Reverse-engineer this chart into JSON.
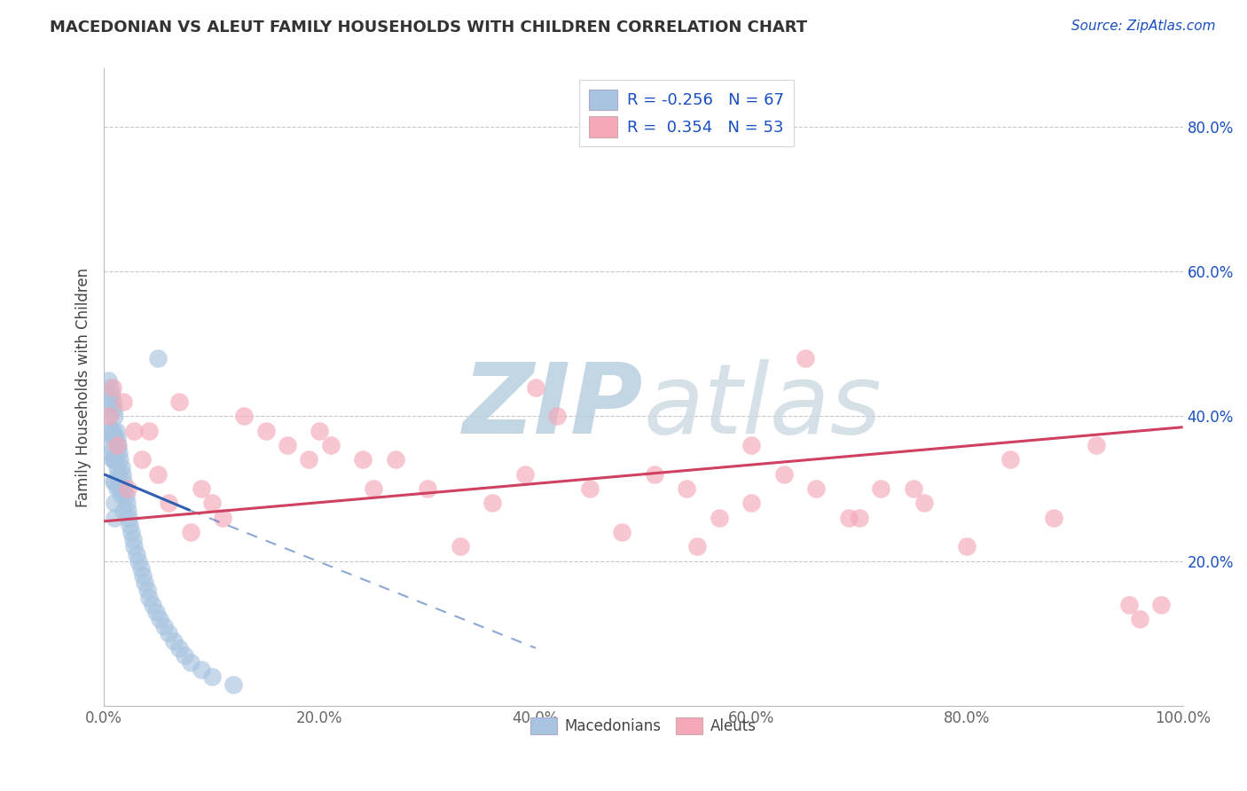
{
  "title": "MACEDONIAN VS ALEUT FAMILY HOUSEHOLDS WITH CHILDREN CORRELATION CHART",
  "source": "Source: ZipAtlas.com",
  "ylabel": "Family Households with Children",
  "xlim": [
    0.0,
    1.0
  ],
  "ylim": [
    0.0,
    0.88
  ],
  "xticks": [
    0.0,
    0.2,
    0.4,
    0.6,
    0.8,
    1.0
  ],
  "xtick_labels": [
    "0.0%",
    "20.0%",
    "40.0%",
    "60.0%",
    "80.0%",
    "100.0%"
  ],
  "yticks": [
    0.0,
    0.2,
    0.4,
    0.6,
    0.8
  ],
  "ytick_labels": [
    "",
    "20.0%",
    "40.0%",
    "60.0%",
    "80.0%"
  ],
  "macedonian_R": -0.256,
  "macedonian_N": 67,
  "aleut_R": 0.354,
  "aleut_N": 53,
  "macedonian_color": "#a8c4e0",
  "macedonian_edge": "#7aaace",
  "aleut_color": "#f4a8b8",
  "aleut_edge": "#e07890",
  "trend_macedonian_color": "#3060b0",
  "trend_aleut_color": "#d04060",
  "watermark_color": "#ccd8e8",
  "legend_R_color": "#1a4fc0",
  "background_color": "#ffffff",
  "grid_color": "#c8c8c8",
  "macedonian_x": [
    0.004,
    0.005,
    0.005,
    0.006,
    0.006,
    0.006,
    0.007,
    0.007,
    0.007,
    0.008,
    0.008,
    0.008,
    0.009,
    0.009,
    0.009,
    0.009,
    0.01,
    0.01,
    0.01,
    0.01,
    0.01,
    0.01,
    0.011,
    0.011,
    0.012,
    0.012,
    0.012,
    0.013,
    0.013,
    0.014,
    0.014,
    0.015,
    0.015,
    0.016,
    0.016,
    0.017,
    0.018,
    0.018,
    0.019,
    0.02,
    0.021,
    0.022,
    0.023,
    0.024,
    0.025,
    0.027,
    0.028,
    0.03,
    0.032,
    0.034,
    0.036,
    0.038,
    0.04,
    0.042,
    0.045,
    0.048,
    0.052,
    0.056,
    0.06,
    0.065,
    0.07,
    0.075,
    0.08,
    0.09,
    0.1,
    0.12,
    0.05
  ],
  "macedonian_y": [
    0.45,
    0.42,
    0.38,
    0.44,
    0.4,
    0.36,
    0.43,
    0.38,
    0.35,
    0.42,
    0.38,
    0.34,
    0.41,
    0.37,
    0.34,
    0.31,
    0.4,
    0.37,
    0.34,
    0.31,
    0.28,
    0.26,
    0.38,
    0.35,
    0.37,
    0.33,
    0.3,
    0.36,
    0.32,
    0.35,
    0.31,
    0.34,
    0.3,
    0.33,
    0.29,
    0.32,
    0.31,
    0.27,
    0.3,
    0.29,
    0.28,
    0.27,
    0.26,
    0.25,
    0.24,
    0.23,
    0.22,
    0.21,
    0.2,
    0.19,
    0.18,
    0.17,
    0.16,
    0.15,
    0.14,
    0.13,
    0.12,
    0.11,
    0.1,
    0.09,
    0.08,
    0.07,
    0.06,
    0.05,
    0.04,
    0.03,
    0.48
  ],
  "aleut_x": [
    0.005,
    0.008,
    0.012,
    0.018,
    0.022,
    0.028,
    0.035,
    0.042,
    0.05,
    0.06,
    0.07,
    0.08,
    0.09,
    0.1,
    0.11,
    0.13,
    0.15,
    0.17,
    0.19,
    0.21,
    0.24,
    0.27,
    0.3,
    0.33,
    0.36,
    0.39,
    0.42,
    0.45,
    0.48,
    0.51,
    0.54,
    0.57,
    0.6,
    0.63,
    0.66,
    0.69,
    0.72,
    0.76,
    0.8,
    0.84,
    0.88,
    0.92,
    0.96,
    0.2,
    0.25,
    0.4,
    0.55,
    0.6,
    0.65,
    0.7,
    0.75,
    0.95,
    0.98
  ],
  "aleut_y": [
    0.4,
    0.44,
    0.36,
    0.42,
    0.3,
    0.38,
    0.34,
    0.38,
    0.32,
    0.28,
    0.42,
    0.24,
    0.3,
    0.28,
    0.26,
    0.4,
    0.38,
    0.36,
    0.34,
    0.36,
    0.34,
    0.34,
    0.3,
    0.22,
    0.28,
    0.32,
    0.4,
    0.3,
    0.24,
    0.32,
    0.3,
    0.26,
    0.28,
    0.32,
    0.3,
    0.26,
    0.3,
    0.28,
    0.22,
    0.34,
    0.26,
    0.36,
    0.12,
    0.38,
    0.3,
    0.44,
    0.22,
    0.36,
    0.48,
    0.26,
    0.3,
    0.14,
    0.14
  ],
  "mac_trend_x0": 0.0,
  "mac_trend_y0": 0.32,
  "mac_trend_x1": 0.08,
  "mac_trend_y1": 0.27,
  "mac_trend_x2": 0.4,
  "mac_trend_y2": 0.08,
  "aleut_trend_x0": 0.0,
  "aleut_trend_y0": 0.255,
  "aleut_trend_x1": 1.0,
  "aleut_trend_y1": 0.385
}
